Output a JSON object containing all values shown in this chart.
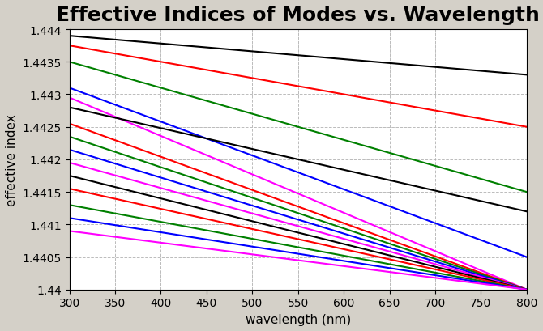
{
  "title": "Effective Indices of Modes vs. Wavelength",
  "xlabel": "wavelength (nm)",
  "ylabel": "effective index",
  "xlim": [
    300,
    800
  ],
  "ylim": [
    1.44,
    1.444
  ],
  "yticks": [
    1.44,
    1.4405,
    1.441,
    1.4415,
    1.442,
    1.4425,
    1.443,
    1.4435,
    1.444
  ],
  "xticks": [
    300,
    350,
    400,
    450,
    500,
    550,
    600,
    650,
    700,
    750,
    800
  ],
  "background_color": "#d4d0c8",
  "plot_bg_color": "#ffffff",
  "grid_color": "#aaaaaa",
  "lines": [
    {
      "color": "#000000",
      "y300": 1.4439,
      "y800": 1.4433
    },
    {
      "color": "#ff0000",
      "y300": 1.44375,
      "y800": 1.4425
    },
    {
      "color": "#008000",
      "y300": 1.4435,
      "y800": 1.4415
    },
    {
      "color": "#0000ff",
      "y300": 1.4431,
      "y800": 1.4405
    },
    {
      "color": "#ff00ff",
      "y300": 1.44295,
      "y800": 1.44
    },
    {
      "color": "#000000",
      "y300": 1.4428,
      "y800": 1.4412
    },
    {
      "color": "#ff0000",
      "y300": 1.44255,
      "y800": 1.44
    },
    {
      "color": "#008000",
      "y300": 1.44235,
      "y800": 1.44
    },
    {
      "color": "#0000ff",
      "y300": 1.44215,
      "y800": 1.44
    },
    {
      "color": "#ff00ff",
      "y300": 1.44195,
      "y800": 1.44
    },
    {
      "color": "#000000",
      "y300": 1.44175,
      "y800": 1.44
    },
    {
      "color": "#ff0000",
      "y300": 1.44155,
      "y800": 1.44
    },
    {
      "color": "#008000",
      "y300": 1.4413,
      "y800": 1.44
    },
    {
      "color": "#0000ff",
      "y300": 1.4411,
      "y800": 1.44
    },
    {
      "color": "#ff00ff",
      "y300": 1.4409,
      "y800": 1.44
    }
  ],
  "title_fontsize": 18,
  "axis_fontsize": 11,
  "tick_fontsize": 10,
  "linewidth": 1.5
}
